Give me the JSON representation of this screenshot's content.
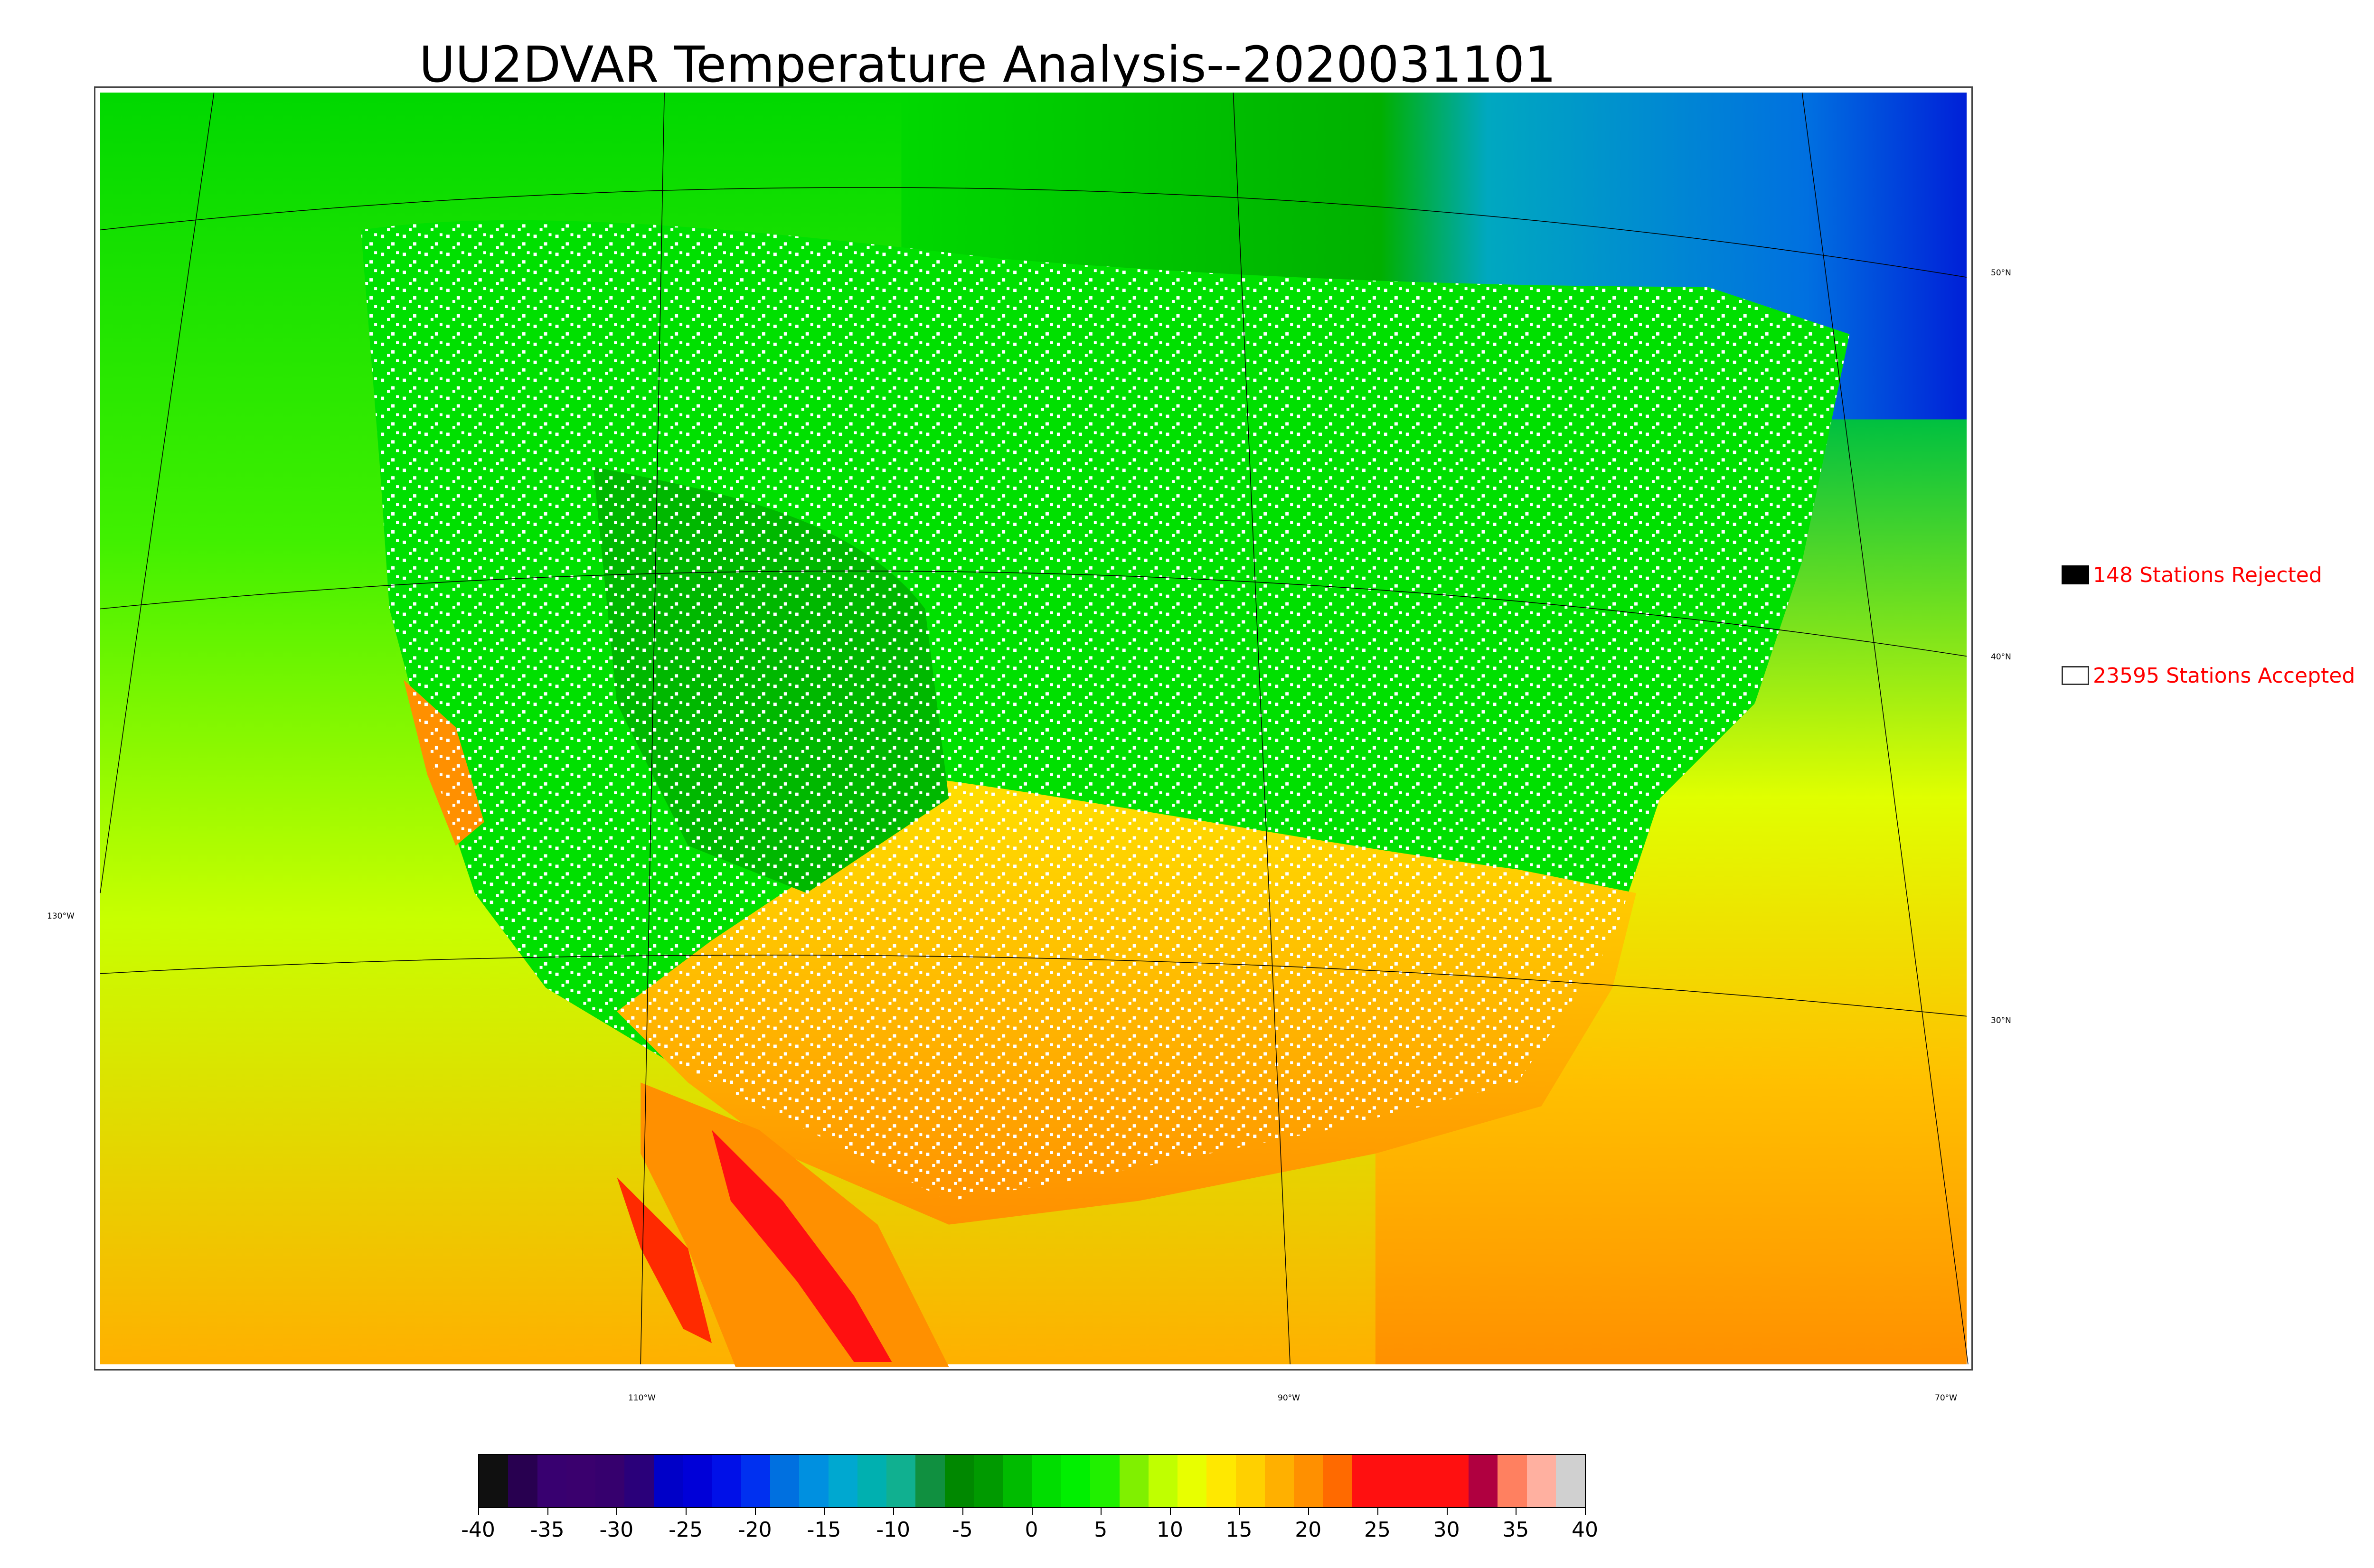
{
  "title": "UU2DVAR Temperature Analysis--2020031101",
  "map": {
    "lat_labels": [
      {
        "text": "50°N"
      },
      {
        "text": "40°N"
      },
      {
        "text": "30°N"
      },
      {
        "text": "130°W"
      }
    ],
    "lon_labels": [
      {
        "text": "110°W"
      },
      {
        "text": "90°W"
      },
      {
        "text": "70°W"
      }
    ]
  },
  "legend": {
    "rejected": {
      "label": "148 Stations Rejected",
      "color": "#000000"
    },
    "accepted": {
      "label": "23595 Stations Accepted",
      "color": "#ffffff"
    }
  },
  "colorbar": {
    "range": [
      -40,
      40
    ],
    "ticks": [
      "-40",
      "-35",
      "-30",
      "-25",
      "-20",
      "-15",
      "-10",
      "-5",
      "0",
      "5",
      "10",
      "15",
      "20",
      "25",
      "30",
      "35",
      "40"
    ],
    "colors": [
      "#101010",
      "#280050",
      "#380070",
      "#3a006e",
      "#36006e",
      "#2a007a",
      "#0000c8",
      "#0000d8",
      "#0010e8",
      "#0030f0",
      "#0070e0",
      "#0090e0",
      "#00a8d0",
      "#00b0b0",
      "#10b090",
      "#109040",
      "#008800",
      "#009a00",
      "#00bb00",
      "#00dd00",
      "#00f000",
      "#20f000",
      "#80f000",
      "#c0ff00",
      "#e8ff00",
      "#ffe800",
      "#ffd000",
      "#ffb000",
      "#ff9000",
      "#ff6a00",
      "#ff1010",
      "#ff1010",
      "#ff1010",
      "#ff1010",
      "#b00040",
      "#ff8060",
      "#ffb0a0",
      "#d0d0d0"
    ]
  }
}
